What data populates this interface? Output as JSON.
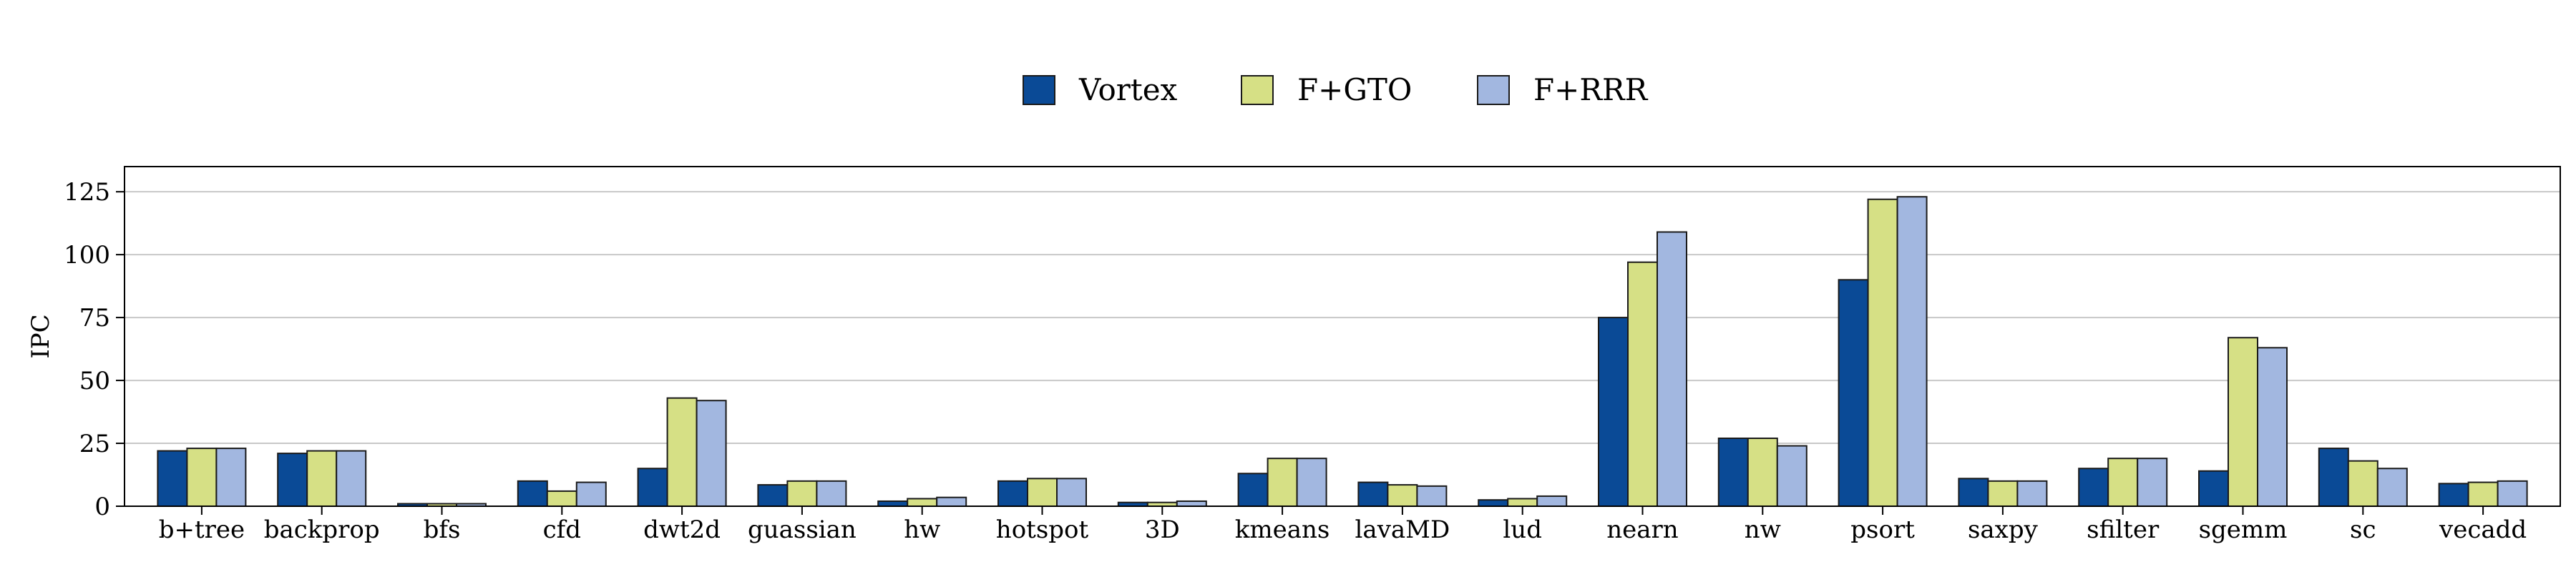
{
  "chart_data": {
    "type": "bar",
    "title": "",
    "xlabel": "",
    "ylabel": "IPC",
    "ylim": [
      0,
      135
    ],
    "yticks": [
      0,
      25,
      50,
      75,
      100,
      125
    ],
    "grid": "horizontal",
    "legend_position": "top-center",
    "categories": [
      "b+tree",
      "backprop",
      "bfs",
      "cfd",
      "dwt2d",
      "guassian",
      "hw",
      "hotspot",
      "3D",
      "kmeans",
      "lavaMD",
      "lud",
      "nearn",
      "nw",
      "psort",
      "saxpy",
      "sfilter",
      "sgemm",
      "sc",
      "vecadd"
    ],
    "series": [
      {
        "name": "Vortex",
        "color": "#0a4a96",
        "values": [
          22,
          21,
          1,
          10,
          15,
          8.5,
          2,
          10,
          1.5,
          13,
          9.5,
          2.5,
          75,
          27,
          90,
          11,
          15,
          14,
          23,
          9
        ]
      },
      {
        "name": "F+GTO",
        "color": "#d6e085",
        "values": [
          23,
          22,
          1,
          6,
          43,
          10,
          3,
          11,
          1.5,
          19,
          8.5,
          3,
          97,
          27,
          122,
          10,
          19,
          67,
          18,
          9.5
        ]
      },
      {
        "name": "F+RRR",
        "color": "#a2b7e0",
        "values": [
          23,
          22,
          1,
          9.5,
          42,
          10,
          3.5,
          11,
          2,
          19,
          8,
          4,
          109,
          24,
          123,
          10,
          19,
          63,
          15,
          10
        ]
      }
    ]
  }
}
